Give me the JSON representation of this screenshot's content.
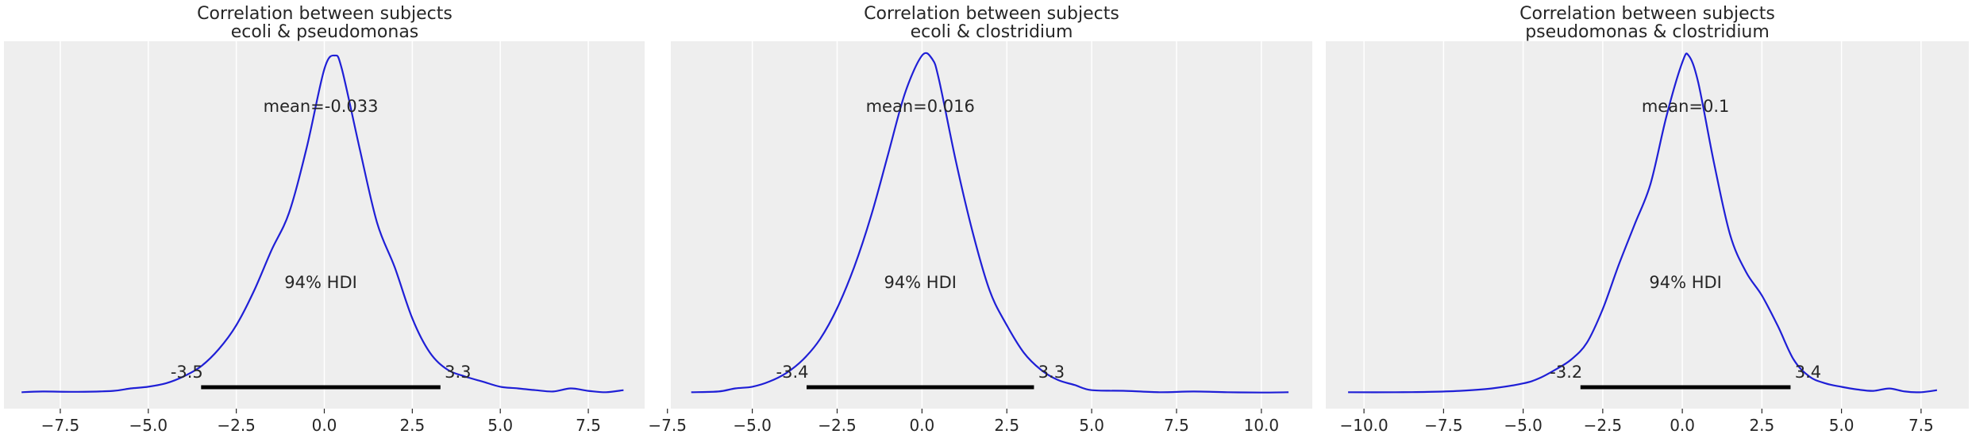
{
  "figure": {
    "colors": {
      "panel_bg": "#eeeeee",
      "grid": "#ffffff",
      "density_line": "#1f1fd6",
      "hdi_bar": "#000000",
      "text": "#262626"
    }
  },
  "chart_data": [
    {
      "type": "line",
      "title": "Correlation between subjects",
      "subtitle": "ecoli & pseudomonas",
      "xlabel": "",
      "ylabel": "",
      "xlim": [
        -9.1,
        9.1
      ],
      "x_ticks": [
        -7.5,
        -5.0,
        -2.5,
        0.0,
        2.5,
        5.0,
        7.5
      ],
      "x_tick_labels": [
        "−7.5",
        "−5.0",
        "−2.5",
        "0.0",
        "2.5",
        "5.0",
        "7.5"
      ],
      "grid": true,
      "mean_label": "mean=-0.033",
      "hdi_label": "94% HDI",
      "hdi": {
        "low": -3.5,
        "high": 3.3,
        "low_label": "-3.5",
        "high_label": "3.3"
      },
      "series": [
        {
          "color": "#1f1fd6",
          "x": [
            -8.6,
            -8.0,
            -7.0,
            -6.0,
            -5.5,
            -5.0,
            -4.5,
            -4.0,
            -3.5,
            -3.0,
            -2.5,
            -2.0,
            -1.5,
            -1.0,
            -0.5,
            0.0,
            0.3,
            0.5,
            1.0,
            1.5,
            2.0,
            2.5,
            3.0,
            3.5,
            4.0,
            4.5,
            5.0,
            5.5,
            6.0,
            6.5,
            7.0,
            7.5,
            8.0,
            8.5
          ],
          "density": [
            0.004,
            0.006,
            0.005,
            0.008,
            0.015,
            0.02,
            0.03,
            0.05,
            0.08,
            0.13,
            0.2,
            0.3,
            0.42,
            0.53,
            0.72,
            0.95,
            0.99,
            0.95,
            0.72,
            0.5,
            0.37,
            0.22,
            0.12,
            0.07,
            0.05,
            0.035,
            0.02,
            0.015,
            0.01,
            0.006,
            0.015,
            0.008,
            0.004,
            0.01
          ]
        }
      ]
    },
    {
      "type": "line",
      "title": "Correlation between subjects",
      "subtitle": "ecoli & clostridium",
      "xlabel": "",
      "ylabel": "",
      "xlim": [
        -7.4,
        11.5
      ],
      "x_ticks": [
        -7.5,
        -5.0,
        -2.5,
        0.0,
        2.5,
        5.0,
        7.5,
        10.0
      ],
      "x_tick_labels": [
        "−7.5",
        "−5.0",
        "−2.5",
        "0.0",
        "2.5",
        "5.0",
        "7.5",
        "10.0"
      ],
      "grid": true,
      "mean_label": "mean=0.016",
      "hdi_label": "94% HDI",
      "hdi": {
        "low": -3.4,
        "high": 3.3,
        "low_label": "-3.4",
        "high_label": "3.3"
      },
      "series": [
        {
          "color": "#1f1fd6",
          "x": [
            -6.8,
            -6.0,
            -5.5,
            -5.0,
            -4.5,
            -4.0,
            -3.5,
            -3.0,
            -2.5,
            -2.0,
            -1.5,
            -1.0,
            -0.5,
            0.0,
            0.3,
            0.5,
            1.0,
            1.5,
            2.0,
            2.5,
            3.0,
            3.5,
            4.0,
            4.5,
            5.0,
            6.0,
            7.0,
            8.0,
            9.0,
            10.0,
            10.8
          ],
          "density": [
            0.004,
            0.006,
            0.015,
            0.02,
            0.035,
            0.06,
            0.1,
            0.16,
            0.25,
            0.37,
            0.52,
            0.7,
            0.88,
            0.99,
            0.98,
            0.92,
            0.68,
            0.47,
            0.3,
            0.2,
            0.12,
            0.07,
            0.04,
            0.025,
            0.01,
            0.008,
            0.004,
            0.006,
            0.004,
            0.003,
            0.004
          ]
        }
      ]
    },
    {
      "type": "line",
      "title": "Correlation between subjects",
      "subtitle": "pseudomonas & clostridium",
      "xlabel": "",
      "ylabel": "",
      "xlim": [
        -11.2,
        9.0
      ],
      "x_ticks": [
        -10.0,
        -7.5,
        -5.0,
        -2.5,
        0.0,
        2.5,
        5.0,
        7.5
      ],
      "x_tick_labels": [
        "−10.0",
        "−7.5",
        "−5.0",
        "−2.5",
        "0.0",
        "2.5",
        "5.0",
        "7.5"
      ],
      "grid": true,
      "mean_label": "mean=0.1",
      "hdi_label": "94% HDI",
      "hdi": {
        "low": -3.2,
        "high": 3.4,
        "low_label": "-3.2",
        "high_label": "3.4"
      },
      "series": [
        {
          "color": "#1f1fd6",
          "x": [
            -10.5,
            -9.0,
            -8.0,
            -7.0,
            -6.0,
            -5.0,
            -4.5,
            -4.0,
            -3.5,
            -3.0,
            -2.5,
            -2.0,
            -1.5,
            -1.0,
            -0.5,
            0.0,
            0.2,
            0.5,
            1.0,
            1.5,
            2.0,
            2.5,
            3.0,
            3.5,
            4.0,
            4.5,
            5.0,
            5.5,
            6.0,
            6.5,
            7.0,
            7.5,
            8.0
          ],
          "density": [
            0.004,
            0.004,
            0.005,
            0.008,
            0.015,
            0.03,
            0.045,
            0.07,
            0.1,
            0.15,
            0.25,
            0.38,
            0.5,
            0.62,
            0.82,
            0.98,
            1.0,
            0.92,
            0.68,
            0.47,
            0.36,
            0.29,
            0.2,
            0.1,
            0.05,
            0.03,
            0.02,
            0.012,
            0.008,
            0.015,
            0.006,
            0.004,
            0.01
          ]
        }
      ]
    }
  ]
}
